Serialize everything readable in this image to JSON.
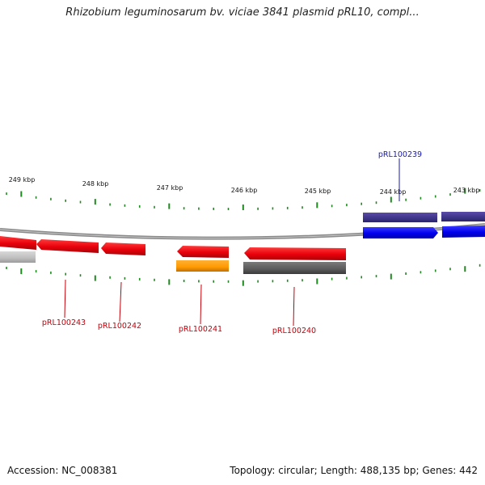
{
  "title": "Rhizobium leguminosarum bv. viciae 3841 plasmid pRL10, compl...",
  "ruler": {
    "tick_labels": [
      "249 kbp",
      "248 kbp",
      "247 kbp",
      "246 kbp",
      "245 kbp",
      "244 kbp",
      "243 kbp"
    ]
  },
  "genes": [
    {
      "label": "pRL100243",
      "strand": "reverse",
      "color": "#e8000a"
    },
    {
      "label": "pRL100242",
      "strand": "reverse",
      "color": "#e8000a"
    },
    {
      "label": "pRL100241",
      "strand": "reverse",
      "color": "#e8000a"
    },
    {
      "label": "pRL100240",
      "strand": "reverse",
      "color": "#e8000a"
    },
    {
      "label": "pRL100239",
      "strand": "forward",
      "color": "#0000ee"
    }
  ],
  "footer": {
    "accession": "Accession: NC_008381",
    "stats": "Topology: circular; Length: 488,135 bp; Genes: 442"
  },
  "colors": {
    "forward_label": "#1a1aa8",
    "reverse_label": "#c4000a",
    "tick": "#1f8a1f",
    "backbone": "#8a8a8a"
  }
}
